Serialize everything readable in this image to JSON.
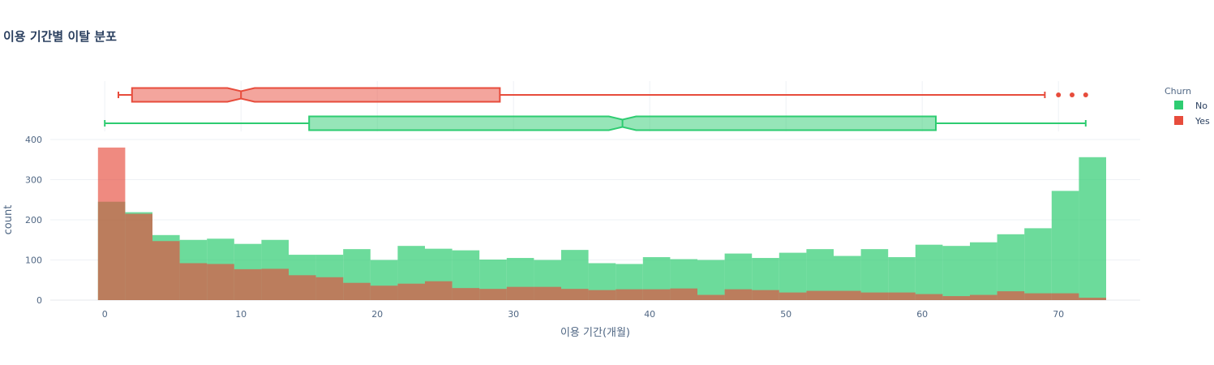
{
  "chart_data": {
    "type": "histogram",
    "title": "이용 기간별 이탈 분포",
    "xlabel": "이용 기간(개월)",
    "ylabel": "count",
    "xlim": [
      -4,
      76
    ],
    "ylim": [
      0,
      400
    ],
    "x_ticks": [
      0,
      10,
      20,
      30,
      40,
      50,
      60,
      70
    ],
    "y_ticks": [
      0,
      100,
      200,
      300,
      400
    ],
    "bin_width": 2,
    "bin_starts": [
      -0.5,
      1.5,
      3.5,
      5.5,
      7.5,
      9.5,
      11.5,
      13.5,
      15.5,
      17.5,
      19.5,
      21.5,
      23.5,
      25.5,
      27.5,
      29.5,
      31.5,
      33.5,
      35.5,
      37.5,
      39.5,
      41.5,
      43.5,
      45.5,
      47.5,
      49.5,
      51.5,
      53.5,
      55.5,
      57.5,
      59.5,
      61.5,
      63.5,
      65.5,
      67.5,
      69.5,
      71.5
    ],
    "legend": {
      "title": "Churn",
      "position": "top-right"
    },
    "grid": true,
    "series": [
      {
        "name": "No",
        "color": "#2ecc71",
        "values": [
          245,
          219,
          162,
          150,
          153,
          140,
          150,
          113,
          113,
          127,
          100,
          135,
          128,
          124,
          101,
          105,
          100,
          125,
          92,
          90,
          107,
          102,
          100,
          116,
          105,
          118,
          127,
          110,
          127,
          107,
          138,
          135,
          144,
          164,
          179,
          272,
          356
        ],
        "box": {
          "min": 0,
          "q1": 15,
          "median": 38,
          "q3": 61,
          "max": 72,
          "notch_low": 37,
          "notch_high": 39,
          "outliers": []
        }
      },
      {
        "name": "Yes",
        "color": "#e74c3c",
        "values": [
          380,
          215,
          147,
          92,
          90,
          77,
          78,
          62,
          57,
          43,
          36,
          41,
          47,
          30,
          28,
          33,
          33,
          28,
          25,
          27,
          27,
          29,
          13,
          27,
          25,
          19,
          23,
          23,
          19,
          19,
          15,
          10,
          13,
          22,
          17,
          17,
          6
        ],
        "box": {
          "min": 1,
          "q1": 2,
          "median": 10,
          "q3": 29,
          "max": 69,
          "notch_low": 9,
          "notch_high": 11,
          "outliers": [
            70,
            71,
            72
          ]
        }
      }
    ]
  }
}
